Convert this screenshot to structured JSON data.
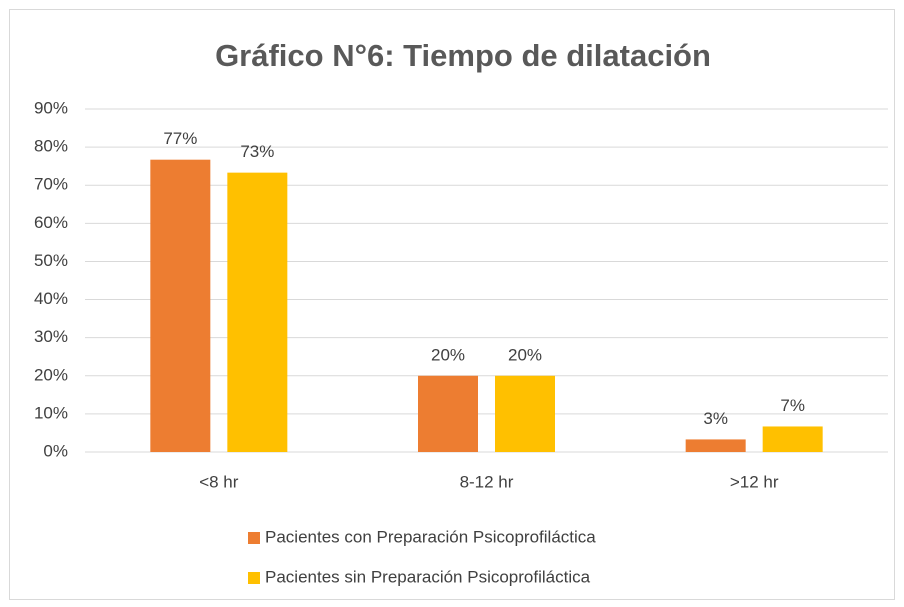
{
  "chart_data": {
    "type": "bar",
    "title": "Gráfico N°6: Tiempo de dilatación",
    "categories": [
      "<8 hr",
      "8-12 hr",
      ">12 hr"
    ],
    "series": [
      {
        "name": "Pacientes con Preparación Psicoprofiláctica",
        "color": "#ed7d31",
        "values": [
          76.7,
          20,
          3.3
        ],
        "value_labels": [
          "77%",
          "20%",
          "3%"
        ]
      },
      {
        "name": "Pacientes sin Preparación Psicoprofiláctica",
        "color": "#ffc000",
        "values": [
          73.3,
          20,
          6.7
        ],
        "value_labels": [
          "73%",
          "20%",
          "7%"
        ]
      }
    ],
    "ylim": [
      0,
      90
    ],
    "yticks": [
      {
        "value": 0,
        "label": "0%"
      },
      {
        "value": 10,
        "label": "10%"
      },
      {
        "value": 20,
        "label": "20%"
      },
      {
        "value": 30,
        "label": "30%"
      },
      {
        "value": 40,
        "label": "40%"
      },
      {
        "value": 50,
        "label": "50%"
      },
      {
        "value": 60,
        "label": "60%"
      },
      {
        "value": 70,
        "label": "70%"
      },
      {
        "value": 80,
        "label": "80%"
      },
      {
        "value": 90,
        "label": "90%"
      }
    ],
    "grid": true,
    "legend": "bottom"
  }
}
